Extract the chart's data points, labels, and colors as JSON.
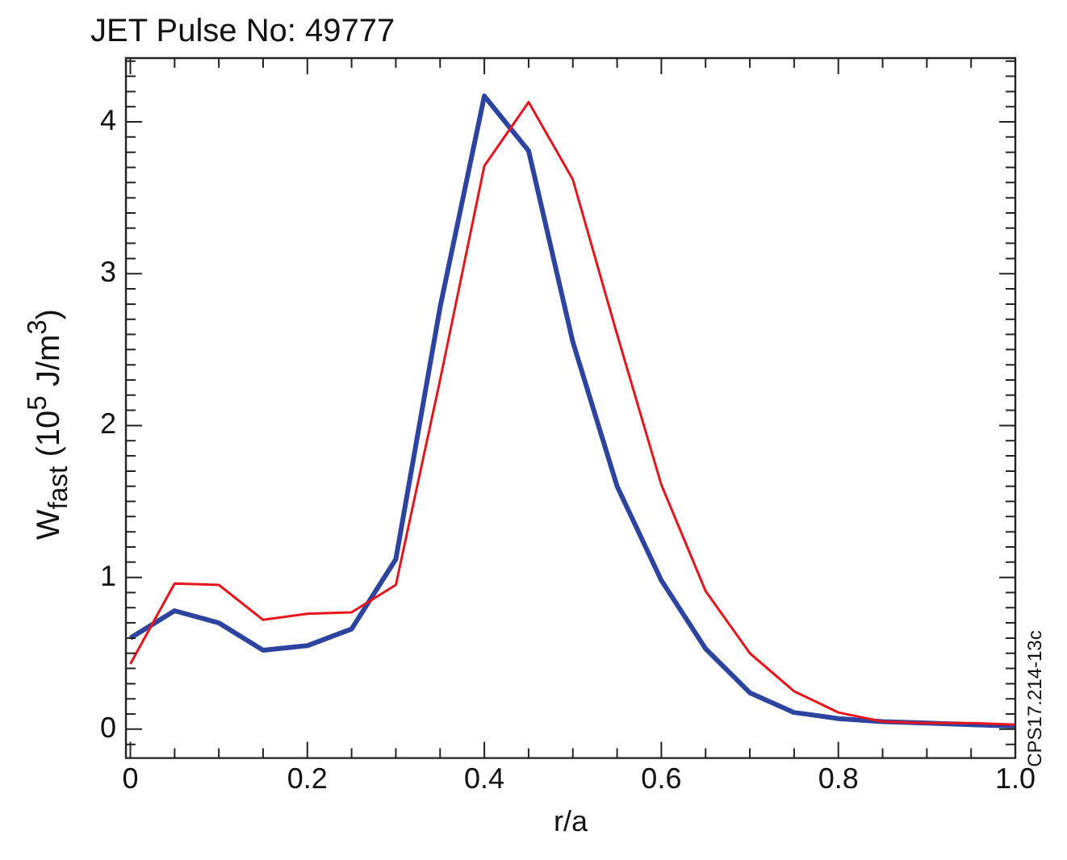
{
  "chart_data": {
    "type": "line",
    "title": "JET Pulse No: 49777",
    "xlabel": "r/a",
    "ylabel": "W$_{fast}$ (10$^{5}$ J/m$^{3}$)",
    "x": [
      0,
      0.05,
      0.1,
      0.15,
      0.2,
      0.25,
      0.3,
      0.35,
      0.4,
      0.45,
      0.5,
      0.55,
      0.6,
      0.65,
      0.7,
      0.75,
      0.8,
      0.85,
      0.9,
      0.95,
      1.0
    ],
    "series": [
      {
        "color": "#e8141c",
        "values": [
          0.43,
          0.96,
          0.95,
          0.72,
          0.76,
          0.77,
          0.95,
          2.3,
          3.71,
          4.13,
          3.62,
          2.6,
          1.61,
          0.91,
          0.5,
          0.25,
          0.11,
          0.05,
          0.04,
          0.04,
          0.03
        ]
      },
      {
        "color": "#2c44a0",
        "values": [
          0.6,
          0.78,
          0.7,
          0.52,
          0.55,
          0.66,
          1.12,
          2.78,
          4.17,
          3.81,
          2.55,
          1.6,
          0.98,
          0.53,
          0.24,
          0.11,
          0.07,
          0.05,
          0.04,
          0.03,
          0.02
        ]
      }
    ],
    "xlim": [
      -0.005,
      1.0
    ],
    "ylim": [
      -0.19,
      4.42
    ],
    "xticks": [
      0,
      {
        "value": 0.05,
        "label": null
      },
      {
        "value": 0.1,
        "label": null
      },
      {
        "value": 0.15,
        "label": null
      },
      0.2,
      {
        "value": 0.25,
        "label": null
      },
      {
        "value": 0.3,
        "label": null
      },
      {
        "value": 0.35,
        "label": null
      },
      0.4,
      {
        "value": 0.45,
        "label": null
      },
      {
        "value": 0.5,
        "label": null
      },
      {
        "value": 0.55,
        "label": null
      },
      0.6,
      {
        "value": 0.65,
        "label": null
      },
      {
        "value": 0.7,
        "label": null
      },
      {
        "value": 0.75,
        "label": null
      },
      0.8,
      {
        "value": 0.85,
        "label": null
      },
      {
        "value": 0.9,
        "label": null
      },
      {
        "value": 0.95,
        "label": null
      },
      {
        "value": 1.0,
        "label": "1.0"
      }
    ],
    "yticks": [
      {
        "value": -0.1,
        "label": null
      },
      0,
      {
        "value": 0.1,
        "label": null
      },
      {
        "value": 0.2,
        "label": null
      },
      {
        "value": 0.3,
        "label": null
      },
      {
        "value": 0.4,
        "label": null
      },
      {
        "value": 0.5,
        "label": null
      },
      {
        "value": 0.6,
        "label": null
      },
      {
        "value": 0.7,
        "label": null
      },
      {
        "value": 0.8,
        "label": null
      },
      {
        "value": 0.9,
        "label": null
      },
      1,
      {
        "value": 1.1,
        "label": null
      },
      {
        "value": 1.2,
        "label": null
      },
      {
        "value": 1.3,
        "label": null
      },
      {
        "value": 1.4,
        "label": null
      },
      {
        "value": 1.5,
        "label": null
      },
      {
        "value": 1.6,
        "label": null
      },
      {
        "value": 1.7,
        "label": null
      },
      {
        "value": 1.8,
        "label": null
      },
      {
        "value": 1.9,
        "label": null
      },
      2,
      {
        "value": 2.1,
        "label": null
      },
      {
        "value": 2.2,
        "label": null
      },
      {
        "value": 2.3,
        "label": null
      },
      {
        "value": 2.4,
        "label": null
      },
      {
        "value": 2.5,
        "label": null
      },
      {
        "value": 2.6,
        "label": null
      },
      {
        "value": 2.7,
        "label": null
      },
      {
        "value": 2.8,
        "label": null
      },
      {
        "value": 2.9,
        "label": null
      },
      3,
      {
        "value": 3.1,
        "label": null
      },
      {
        "value": 3.2,
        "label": null
      },
      {
        "value": 3.3,
        "label": null
      },
      {
        "value": 3.4,
        "label": null
      },
      {
        "value": 3.5,
        "label": null
      },
      {
        "value": 3.6,
        "label": null
      },
      {
        "value": 3.7,
        "label": null
      },
      {
        "value": 3.8,
        "label": null
      },
      {
        "value": 3.9,
        "label": null
      },
      4,
      {
        "value": 4.1,
        "label": null
      },
      {
        "value": 4.2,
        "label": null
      },
      {
        "value": 4.3,
        "label": null
      },
      {
        "value": 4.4,
        "label": null
      }
    ],
    "grid": false,
    "legend": false,
    "marker": "none",
    "line_style": "solid",
    "annotations": [
      "CPS17.214-13c"
    ]
  }
}
